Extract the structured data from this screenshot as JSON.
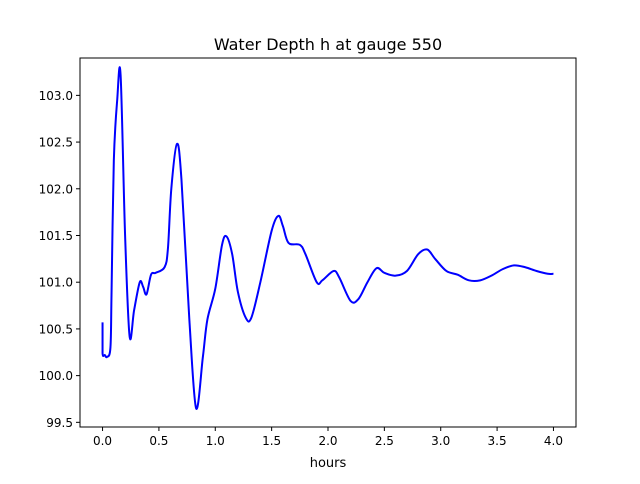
{
  "chart_data": {
    "type": "line",
    "title": "Water Depth h at gauge 550",
    "xlabel": "hours",
    "ylabel": "",
    "xlim": [
      -0.2,
      4.2
    ],
    "ylim": [
      99.45,
      103.4
    ],
    "xticks": [
      "0.0",
      "0.5",
      "1.0",
      "1.5",
      "2.0",
      "2.5",
      "3.0",
      "3.5",
      "4.0"
    ],
    "yticks": [
      "99.5",
      "100.0",
      "100.5",
      "101.0",
      "101.5",
      "102.0",
      "102.5",
      "103.0"
    ],
    "grid": false,
    "series": [
      {
        "name": "h",
        "color": "#0000ff",
        "x": [
          0.0,
          0.0,
          0.02,
          0.04,
          0.07,
          0.08,
          0.1,
          0.13,
          0.16,
          0.2,
          0.24,
          0.28,
          0.33,
          0.36,
          0.39,
          0.43,
          0.47,
          0.55,
          0.58,
          0.61,
          0.66,
          0.7,
          0.77,
          0.83,
          0.89,
          0.93,
          1.0,
          1.06,
          1.1,
          1.15,
          1.2,
          1.27,
          1.32,
          1.4,
          1.5,
          1.56,
          1.6,
          1.65,
          1.75,
          1.8,
          1.9,
          1.95,
          2.05,
          2.1,
          2.2,
          2.27,
          2.35,
          2.43,
          2.5,
          2.6,
          2.7,
          2.8,
          2.88,
          2.95,
          3.05,
          3.15,
          3.25,
          3.35,
          3.45,
          3.55,
          3.65,
          3.75,
          3.85,
          3.95,
          4.0
        ],
        "y": [
          100.57,
          100.24,
          100.22,
          100.2,
          100.3,
          100.9,
          102.3,
          102.95,
          103.22,
          101.5,
          100.42,
          100.7,
          101.0,
          100.95,
          100.87,
          101.08,
          101.1,
          101.16,
          101.36,
          102.0,
          102.48,
          102.1,
          100.6,
          99.65,
          100.2,
          100.6,
          100.93,
          101.4,
          101.49,
          101.3,
          100.9,
          100.62,
          100.62,
          101.0,
          101.55,
          101.71,
          101.6,
          101.42,
          101.4,
          101.3,
          101.0,
          101.02,
          101.12,
          101.05,
          100.8,
          100.82,
          101.0,
          101.15,
          101.1,
          101.07,
          101.12,
          101.3,
          101.35,
          101.25,
          101.12,
          101.08,
          101.02,
          101.02,
          101.07,
          101.14,
          101.18,
          101.16,
          101.12,
          101.09,
          101.09
        ]
      }
    ]
  }
}
